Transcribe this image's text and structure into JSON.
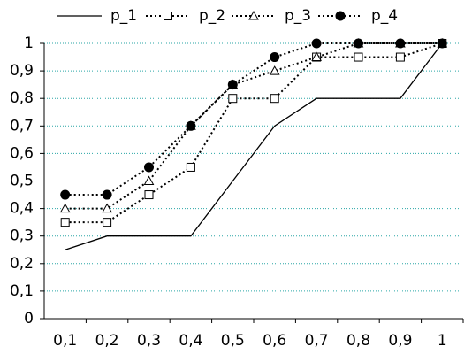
{
  "chart_data": {
    "type": "line",
    "categories": [
      "0,1",
      "0,2",
      "0,3",
      "0,4",
      "0,5",
      "0,6",
      "0,7",
      "0,8",
      "0,9",
      "1"
    ],
    "series": [
      {
        "name": "p_1",
        "color": "#000000",
        "line_style": "solid",
        "marker": "none",
        "values": [
          0.25,
          0.3,
          0.3,
          0.3,
          0.5,
          0.7,
          0.8,
          0.8,
          0.8,
          1
        ]
      },
      {
        "name": "p_2",
        "color": "#000000",
        "line_style": "dotted",
        "marker": "square",
        "values": [
          0.35,
          0.35,
          0.45,
          0.55,
          0.8,
          0.8,
          0.95,
          0.95,
          0.95,
          1
        ]
      },
      {
        "name": "p_3",
        "color": "#000000",
        "line_style": "dotted",
        "marker": "triangle",
        "values": [
          0.4,
          0.4,
          0.5,
          0.7,
          0.85,
          0.9,
          0.95,
          1,
          1,
          1
        ]
      },
      {
        "name": "p_4",
        "color": "#000000",
        "line_style": "dotted",
        "marker": "circle",
        "values": [
          0.45,
          0.45,
          0.55,
          0.7,
          0.85,
          0.95,
          1,
          1,
          1,
          1
        ]
      }
    ],
    "ylim": [
      0,
      1
    ],
    "yticks": [
      0,
      {
        "value": 0.1,
        "label": "0,1"
      },
      {
        "value": 0.2,
        "label": "0,2"
      },
      {
        "value": 0.3,
        "label": "0,3"
      },
      {
        "value": 0.4,
        "label": "0,4"
      },
      {
        "value": 0.5,
        "label": "0,5"
      },
      {
        "value": 0.6,
        "label": "0,6"
      },
      {
        "value": 0.7,
        "label": "0,7"
      },
      {
        "value": 0.8,
        "label": "0,8"
      },
      {
        "value": 0.9,
        "label": "0,9"
      },
      1
    ],
    "grid": true,
    "grid_color": "#2aa6a6",
    "legend": "top"
  }
}
